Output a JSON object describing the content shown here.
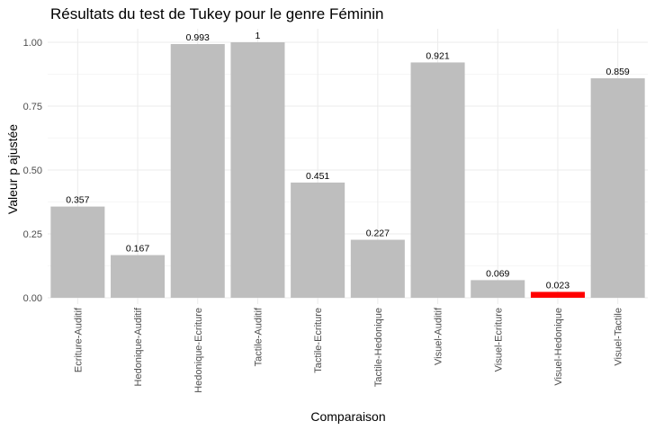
{
  "chart_data": {
    "type": "bar",
    "title": "Résultats du test de Tukey pour le genre Féminin",
    "xlabel": "Comparaison",
    "ylabel": "Valeur p ajustée",
    "categories": [
      "Ecriture-Auditif",
      "Hedonique-Auditif",
      "Hedonique-Ecriture",
      "Tactile-Auditif",
      "Tactile-Ecriture",
      "Tactile-Hedonique",
      "Visuel-Auditif",
      "Visuel-Ecriture",
      "Visuel-Hedonique",
      "Visuel-Tactile"
    ],
    "values": [
      0.357,
      0.167,
      0.993,
      1,
      0.451,
      0.227,
      0.921,
      0.069,
      0.023,
      0.859
    ],
    "value_labels": [
      "0.357",
      "0.167",
      "0.993",
      "1",
      "0.451",
      "0.227",
      "0.921",
      "0.069",
      "0.023",
      "0.859"
    ],
    "bar_colors": [
      "#bebebe",
      "#bebebe",
      "#bebebe",
      "#bebebe",
      "#bebebe",
      "#bebebe",
      "#bebebe",
      "#bebebe",
      "#ff0000",
      "#bebebe"
    ],
    "ylim": [
      0,
      1.05
    ],
    "y_ticks": [
      0,
      0.25,
      0.5,
      0.75,
      1.0
    ],
    "y_tick_labels": [
      "0.00",
      "0.25",
      "0.50",
      "0.75",
      "1.00"
    ],
    "grid": true,
    "legend": "none"
  }
}
